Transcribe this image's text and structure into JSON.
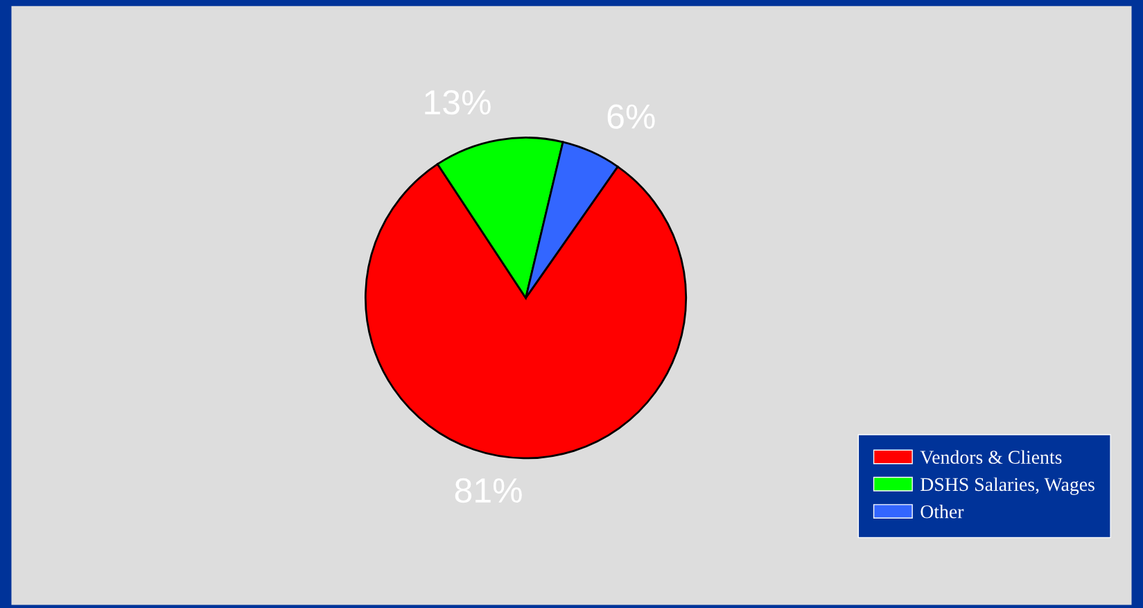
{
  "chart_data": {
    "type": "pie",
    "categories": [
      "Vendors & Clients",
      "DSHS Salaries, Wages",
      "Other"
    ],
    "values": [
      81,
      13,
      6
    ],
    "colors": [
      "#ff0000",
      "#00ff00",
      "#3366ff"
    ],
    "value_labels": [
      "81%",
      "13%",
      "6%"
    ],
    "legend": "bottom right"
  }
}
